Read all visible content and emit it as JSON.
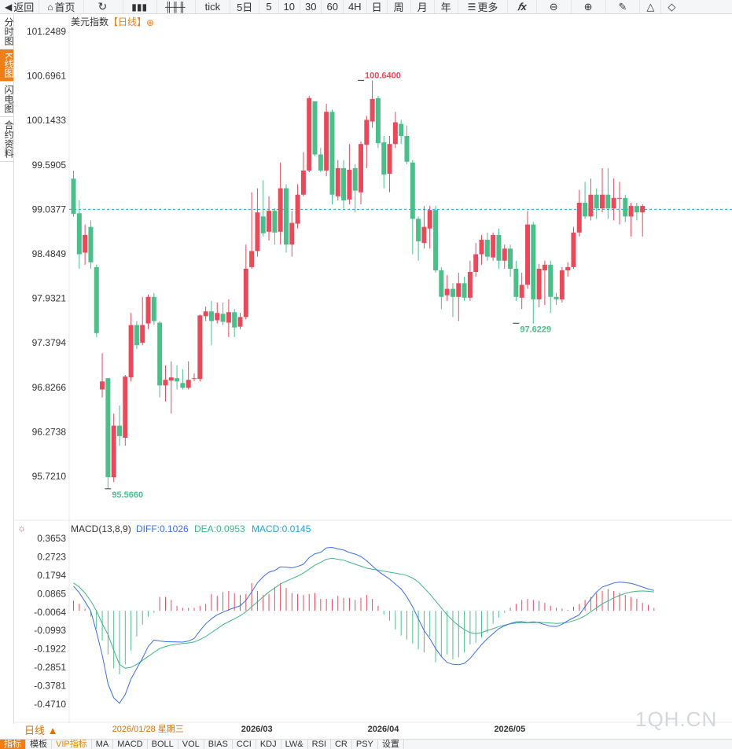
{
  "toolbar": {
    "back_label": "返回",
    "home_label": "首页",
    "tick_label": "tick",
    "periods": [
      "5日",
      "5",
      "10",
      "30",
      "60",
      "4H",
      "日",
      "周",
      "月",
      "年"
    ],
    "more_label": "更多"
  },
  "side_tabs": [
    "分时图",
    "K线图",
    "闪电图",
    "合约资料"
  ],
  "side_active": 1,
  "header": {
    "symbol": "美元指数",
    "period_tag": "【日线】",
    "add_symbol": "⊕"
  },
  "macd_header": {
    "name": "MACD(13,8,9)",
    "diff": "DIFF:0.1026",
    "dea": "DEA:0.0953",
    "macd": "MACD:0.0145"
  },
  "period_selector": "日线 ▲",
  "indicators": [
    "指标",
    "模板",
    "VIP指标",
    "MA",
    "MACD",
    "BOLL",
    "VOL",
    "BIAS",
    "CCI",
    "KDJ",
    "LW&",
    "RSI",
    "CR",
    "PSY",
    "设置"
  ],
  "indicators_active": 0,
  "indicators_vip": 2,
  "watermark": "1QH.CN",
  "colors": {
    "up": "#e8495b",
    "down": "#4bbf8a",
    "diff": "#3a6ee8",
    "dea": "#3fb784",
    "ref_line": "#2a9fd6",
    "accent": "#f07e17"
  },
  "chart_data": [
    {
      "type": "candlestick",
      "title": "美元指数",
      "y_ticks": [
        "101.2489",
        "100.6961",
        "100.1433",
        "99.5905",
        "99.0377",
        "98.4849",
        "97.9321",
        "97.3794",
        "96.8266",
        "96.2738",
        "95.7210"
      ],
      "ylim": [
        95.45,
        101.4
      ],
      "x_ticks": [
        {
          "index": 7,
          "label": "2026/01/28 星期三"
        },
        {
          "index": 30,
          "label": "2026/03"
        },
        {
          "index": 52,
          "label": "2026/04"
        },
        {
          "index": 74,
          "label": "2026/05"
        }
      ],
      "reference_line": 99.0377,
      "annotations": [
        {
          "index": 50,
          "value": 100.64,
          "label": "100.6400"
        },
        {
          "index": 6,
          "value": 95.566,
          "label": "95.5660"
        },
        {
          "index": 77,
          "value": 97.6229,
          "label": "97.6229"
        }
      ],
      "candles": [
        [
          99.42,
          98.98,
          99.52,
          98.95
        ],
        [
          98.99,
          98.48,
          99.15,
          98.3
        ],
        [
          98.5,
          98.72,
          98.85,
          98.35
        ],
        [
          98.82,
          98.38,
          98.9,
          98.3
        ],
        [
          98.32,
          97.5,
          98.35,
          97.45
        ],
        [
          96.8,
          96.9,
          97.25,
          96.7
        ],
        [
          96.94,
          95.71,
          96.94,
          95.57
        ],
        [
          95.71,
          96.35,
          96.5,
          95.65
        ],
        [
          96.35,
          96.22,
          96.6,
          96.1
        ],
        [
          96.2,
          96.96,
          96.98,
          96.1
        ],
        [
          96.95,
          97.6,
          97.75,
          96.9
        ],
        [
          97.6,
          97.35,
          97.65,
          97.3
        ],
        [
          97.38,
          97.6,
          97.95,
          97.35
        ],
        [
          97.62,
          97.95,
          97.98,
          97.55
        ],
        [
          97.95,
          97.65,
          98.0,
          97.6
        ],
        [
          97.63,
          96.85,
          97.65,
          96.7
        ],
        [
          96.85,
          96.92,
          97.1,
          96.65
        ],
        [
          96.91,
          96.95,
          97.15,
          96.5
        ],
        [
          96.94,
          96.9,
          97.1,
          96.8
        ],
        [
          96.88,
          96.82,
          97.05,
          96.8
        ],
        [
          96.82,
          96.92,
          97.15,
          96.8
        ],
        [
          96.93,
          96.94,
          97.0,
          96.9
        ],
        [
          96.93,
          97.72,
          97.73,
          96.9
        ],
        [
          97.71,
          97.77,
          97.83,
          97.65
        ],
        [
          97.77,
          97.65,
          97.9,
          97.35
        ],
        [
          97.66,
          97.75,
          97.88,
          97.62
        ],
        [
          97.74,
          97.64,
          97.88,
          97.6
        ],
        [
          97.63,
          97.76,
          97.92,
          97.45
        ],
        [
          97.76,
          97.57,
          97.8,
          97.45
        ],
        [
          97.58,
          97.7,
          97.75,
          97.55
        ],
        [
          97.7,
          98.3,
          98.6,
          97.67
        ],
        [
          98.32,
          98.52,
          99.25,
          98.3
        ],
        [
          98.52,
          99.0,
          99.3,
          98.45
        ],
        [
          98.95,
          98.74,
          99.4,
          98.7
        ],
        [
          98.76,
          99.02,
          99.2,
          98.65
        ],
        [
          99.02,
          98.75,
          99.05,
          98.6
        ],
        [
          98.76,
          99.3,
          99.62,
          98.6
        ],
        [
          99.3,
          98.6,
          99.35,
          98.5
        ],
        [
          98.6,
          98.87,
          99.02,
          98.45
        ],
        [
          98.86,
          99.22,
          99.35,
          98.8
        ],
        [
          99.22,
          99.52,
          99.75,
          99.2
        ],
        [
          99.52,
          100.42,
          100.45,
          99.5
        ],
        [
          100.38,
          99.72,
          100.35,
          99.7
        ],
        [
          99.72,
          99.52,
          99.8,
          99.5
        ],
        [
          99.52,
          100.25,
          100.35,
          99.45
        ],
        [
          100.25,
          99.22,
          100.28,
          99.1
        ],
        [
          99.2,
          99.55,
          99.65,
          99.15
        ],
        [
          99.55,
          99.15,
          99.65,
          99.05
        ],
        [
          99.16,
          99.53,
          99.85,
          99.1
        ],
        [
          99.55,
          99.27,
          99.6,
          99.0
        ],
        [
          99.25,
          99.85,
          99.88,
          99.1
        ],
        [
          99.84,
          100.15,
          100.2,
          99.55
        ],
        [
          100.13,
          100.41,
          100.64,
          100.05
        ],
        [
          100.42,
          99.86,
          100.45,
          99.8
        ],
        [
          99.87,
          99.47,
          99.95,
          99.3
        ],
        [
          99.48,
          99.85,
          99.95,
          99.25
        ],
        [
          99.85,
          100.12,
          100.25,
          99.8
        ],
        [
          100.1,
          99.95,
          100.15,
          99.85
        ],
        [
          99.95,
          99.63,
          100.08,
          99.6
        ],
        [
          99.62,
          98.92,
          99.65,
          98.48
        ],
        [
          98.92,
          98.64,
          98.95,
          98.4
        ],
        [
          98.62,
          98.82,
          99.08,
          98.55
        ],
        [
          98.8,
          99.03,
          99.08,
          98.55
        ],
        [
          99.03,
          98.28,
          99.08,
          98.25
        ],
        [
          98.28,
          97.95,
          98.32,
          97.8
        ],
        [
          97.97,
          98.05,
          98.22,
          97.9
        ],
        [
          98.05,
          97.95,
          98.12,
          97.7
        ],
        [
          97.95,
          98.12,
          98.25,
          97.65
        ],
        [
          98.12,
          97.94,
          98.2,
          97.9
        ],
        [
          97.94,
          98.26,
          98.4,
          97.9
        ],
        [
          98.26,
          98.48,
          98.62,
          98.2
        ],
        [
          98.48,
          98.66,
          98.72,
          98.35
        ],
        [
          98.66,
          98.45,
          98.75,
          98.4
        ],
        [
          98.44,
          98.72,
          98.75,
          98.4
        ],
        [
          98.72,
          98.4,
          98.8,
          98.3
        ],
        [
          98.4,
          98.55,
          98.6,
          98.3
        ],
        [
          98.55,
          98.3,
          98.6,
          98.2
        ],
        [
          98.3,
          97.95,
          98.4,
          97.9
        ],
        [
          97.94,
          98.1,
          98.25,
          97.8
        ],
        [
          98.1,
          98.85,
          99.02,
          98.05
        ],
        [
          98.85,
          97.92,
          98.88,
          97.62
        ],
        [
          97.92,
          98.3,
          98.36,
          97.82
        ],
        [
          98.28,
          98.35,
          98.4,
          97.85
        ],
        [
          98.35,
          97.95,
          98.4,
          97.75
        ],
        [
          97.95,
          97.92,
          98.0,
          97.85
        ],
        [
          97.92,
          98.28,
          98.32,
          97.88
        ],
        [
          98.28,
          98.32,
          98.38,
          98.2
        ],
        [
          98.32,
          98.75,
          98.82,
          98.3
        ],
        [
          98.75,
          99.12,
          99.28,
          98.7
        ],
        [
          99.12,
          98.95,
          99.38,
          98.92
        ],
        [
          98.95,
          99.22,
          99.42,
          98.9
        ],
        [
          99.22,
          99.05,
          99.3,
          98.92
        ],
        [
          99.05,
          99.22,
          99.55,
          99.0
        ],
        [
          99.22,
          99.05,
          99.55,
          98.92
        ],
        [
          99.05,
          99.18,
          99.42,
          98.9
        ],
        [
          99.18,
          99.18,
          99.38,
          98.85
        ],
        [
          99.18,
          98.95,
          99.22,
          98.88
        ],
        [
          98.95,
          99.08,
          99.12,
          98.7
        ],
        [
          99.08,
          99.0,
          99.12,
          98.9
        ],
        [
          99.0,
          99.08,
          99.1,
          98.7
        ]
      ]
    },
    {
      "type": "macd",
      "title": "MACD(13,8,9)",
      "y_ticks": [
        "0.3653",
        "0.2723",
        "0.1794",
        "0.0865",
        "-0.0064",
        "-0.0993",
        "-0.1922",
        "-0.2851",
        "-0.3781",
        "-0.4710"
      ],
      "ylim": [
        -0.58,
        0.4
      ],
      "series": [
        {
          "name": "DIFF",
          "values": [
            0.1245,
            0.0911,
            0.0466,
            -0.0015,
            -0.1063,
            -0.2245,
            -0.3686,
            -0.4392,
            -0.4661,
            -0.4218,
            -0.3436,
            -0.2909,
            -0.2391,
            -0.1795,
            -0.1477,
            -0.1524,
            -0.1556,
            -0.1563,
            -0.1567,
            -0.158,
            -0.1523,
            -0.1398,
            -0.1002,
            -0.0658,
            -0.04,
            -0.0201,
            -0.0067,
            0.005,
            0.0161,
            0.0248,
            0.0528,
            0.0949,
            0.1415,
            0.1713,
            0.1947,
            0.2032,
            0.2214,
            0.2203,
            0.2168,
            0.2239,
            0.235,
            0.268,
            0.2876,
            0.2945,
            0.3173,
            0.3199,
            0.312,
            0.3062,
            0.2941,
            0.2861,
            0.2737,
            0.2524,
            0.2262,
            0.2,
            0.18,
            0.16,
            0.135,
            0.11,
            0.07,
            0.02,
            -0.04,
            -0.1,
            -0.14,
            -0.19,
            -0.23,
            -0.26,
            -0.27,
            -0.272,
            -0.265,
            -0.24,
            -0.205,
            -0.17,
            -0.14,
            -0.115,
            -0.09,
            -0.075,
            -0.064,
            -0.056,
            -0.055,
            -0.059,
            -0.056,
            -0.06,
            -0.07,
            -0.078,
            -0.08,
            -0.068,
            -0.05,
            -0.035,
            -0.02,
            0.02,
            0.06,
            0.095,
            0.12,
            0.13,
            0.14,
            0.145,
            0.142,
            0.138,
            0.13,
            0.12,
            0.11,
            0.1026
          ]
        },
        {
          "name": "DEA",
          "values": [
            0.14,
            0.12,
            0.09,
            0.05,
            0.0,
            -0.065,
            -0.12,
            -0.2,
            -0.27,
            -0.29,
            -0.285,
            -0.27,
            -0.25,
            -0.23,
            -0.21,
            -0.19,
            -0.18,
            -0.172,
            -0.168,
            -0.165,
            -0.162,
            -0.157,
            -0.145,
            -0.13,
            -0.11,
            -0.09,
            -0.07,
            -0.055,
            -0.04,
            -0.025,
            -0.005,
            0.02,
            0.045,
            0.07,
            0.095,
            0.115,
            0.135,
            0.15,
            0.162,
            0.175,
            0.19,
            0.21,
            0.23,
            0.245,
            0.26,
            0.265,
            0.26,
            0.255,
            0.245,
            0.235,
            0.225,
            0.215,
            0.21,
            0.205,
            0.2,
            0.195,
            0.19,
            0.185,
            0.178,
            0.165,
            0.145,
            0.115,
            0.085,
            0.05,
            0.015,
            -0.02,
            -0.05,
            -0.075,
            -0.095,
            -0.11,
            -0.115,
            -0.11,
            -0.1,
            -0.09,
            -0.08,
            -0.072,
            -0.066,
            -0.062,
            -0.06,
            -0.06,
            -0.059,
            -0.058,
            -0.06,
            -0.062,
            -0.064,
            -0.062,
            -0.058,
            -0.05,
            -0.04,
            -0.025,
            -0.005,
            0.015,
            0.035,
            0.05,
            0.065,
            0.078,
            0.088,
            0.095,
            0.099,
            0.1,
            0.098,
            0.0953
          ]
        },
        {
          "name": "MACD",
          "values": [
            0.05,
            0.035,
            0.01,
            -0.03,
            -0.09,
            -0.15,
            -0.22,
            -0.29,
            -0.32,
            -0.27,
            -0.2,
            -0.13,
            -0.07,
            -0.03,
            -0.01,
            0.07,
            0.07,
            0.055,
            0.025,
            0.015,
            0.015,
            0.015,
            0.025,
            0.035,
            0.085,
            0.075,
            0.095,
            0.1,
            0.09,
            0.08,
            0.085,
            0.14,
            0.1,
            0.08,
            0.085,
            0.12,
            0.14,
            0.115,
            0.09,
            0.085,
            0.08,
            0.085,
            0.09,
            0.06,
            0.06,
            0.06,
            0.075,
            0.065,
            0.065,
            0.055,
            0.065,
            0.08,
            0.06,
            0.025,
            -0.02,
            -0.05,
            -0.095,
            -0.125,
            -0.145,
            -0.165,
            -0.195,
            -0.21,
            -0.13,
            -0.26,
            -0.235,
            -0.22,
            -0.245,
            -0.235,
            -0.21,
            -0.17,
            -0.16,
            -0.135,
            -0.11,
            -0.065,
            -0.035,
            -0.01,
            0.015,
            0.035,
            0.055,
            0.06,
            0.055,
            0.05,
            0.04,
            0.025,
            0.015,
            0.01,
            0.005,
            0.02,
            0.035,
            0.055,
            0.07,
            0.09,
            0.1,
            0.11,
            0.1,
            0.09,
            0.08,
            0.07,
            0.06,
            0.04,
            0.03,
            0.0145
          ]
        }
      ]
    }
  ]
}
